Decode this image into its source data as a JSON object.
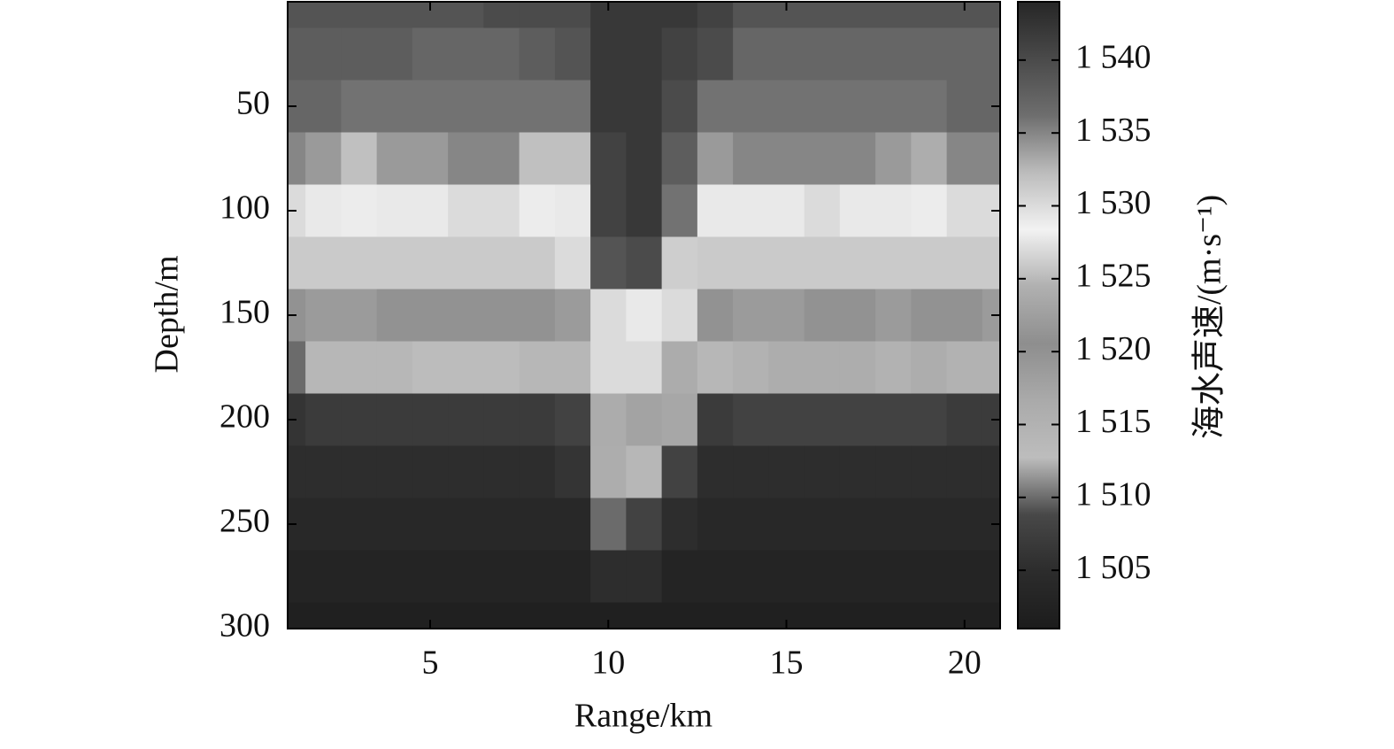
{
  "chart_data": {
    "type": "heatmap",
    "x_label": "Range/km",
    "y_label": "Depth/m",
    "colorbar_label": "海水声速/(m·s⁻¹)",
    "x": [
      1,
      2,
      3,
      4,
      5,
      6,
      7,
      8,
      9,
      10,
      11,
      12,
      13,
      14,
      15,
      16,
      17,
      18,
      19,
      20,
      21
    ],
    "y": [
      0,
      25,
      50,
      75,
      100,
      125,
      150,
      175,
      200,
      225,
      250,
      275,
      300
    ],
    "z": [
      [
        1539,
        1539,
        1539,
        1539,
        1539,
        1539,
        1540,
        1540,
        1540,
        1542,
        1542,
        1542,
        1541,
        1539,
        1539,
        1539,
        1539,
        1539,
        1539,
        1539,
        1539
      ],
      [
        1538,
        1538,
        1538,
        1538,
        1537,
        1537,
        1537,
        1538,
        1539,
        1542,
        1542,
        1541,
        1540,
        1537,
        1537,
        1537,
        1537,
        1537,
        1537,
        1537,
        1537
      ],
      [
        1537,
        1537,
        1536,
        1536,
        1536,
        1536,
        1536,
        1536,
        1536,
        1542,
        1542,
        1540,
        1536,
        1536,
        1536,
        1536,
        1536,
        1536,
        1536,
        1537,
        1537
      ],
      [
        1535,
        1534,
        1532,
        1534,
        1534,
        1535,
        1535,
        1532,
        1532,
        1541,
        1542,
        1538,
        1534,
        1535,
        1535,
        1535,
        1535,
        1534,
        1533,
        1535,
        1535
      ],
      [
        1530,
        1529,
        1528,
        1529,
        1529,
        1530,
        1530,
        1528,
        1529,
        1541,
        1542,
        1536,
        1529,
        1529,
        1529,
        1530,
        1529,
        1529,
        1528,
        1530,
        1530
      ],
      [
        1526,
        1526,
        1526,
        1526,
        1526,
        1526,
        1526,
        1526,
        1527,
        1539,
        1540,
        1531,
        1526,
        1526,
        1526,
        1526,
        1526,
        1526,
        1526,
        1526,
        1526
      ],
      [
        1520,
        1522,
        1522,
        1521,
        1521,
        1520,
        1520,
        1521,
        1522,
        1530,
        1529,
        1527,
        1520,
        1522,
        1522,
        1521,
        1521,
        1522,
        1521,
        1521,
        1522
      ],
      [
        1510,
        1514,
        1514,
        1514,
        1513,
        1513,
        1513,
        1514,
        1514,
        1527,
        1527,
        1524,
        1514,
        1515,
        1516,
        1516,
        1516,
        1515,
        1516,
        1515,
        1515
      ],
      [
        1506,
        1507,
        1507,
        1507,
        1507,
        1507,
        1507,
        1507,
        1508,
        1524,
        1523,
        1512,
        1507,
        1508,
        1508,
        1508,
        1508,
        1508,
        1508,
        1507,
        1507
      ],
      [
        1505,
        1505,
        1505,
        1505,
        1505,
        1505,
        1505,
        1505,
        1506,
        1516,
        1514,
        1508,
        1505,
        1505,
        1505,
        1505,
        1505,
        1505,
        1505,
        1505,
        1505
      ],
      [
        1504,
        1504,
        1504,
        1504,
        1504,
        1504,
        1504,
        1504,
        1504,
        1510,
        1508,
        1505,
        1504,
        1504,
        1504,
        1504,
        1504,
        1504,
        1504,
        1504,
        1504
      ],
      [
        1503,
        1503,
        1503,
        1503,
        1503,
        1503,
        1503,
        1503,
        1503,
        1505,
        1505,
        1503,
        1503,
        1503,
        1503,
        1503,
        1503,
        1503,
        1503,
        1503,
        1503
      ],
      [
        1502,
        1502,
        1502,
        1502,
        1502,
        1502,
        1502,
        1502,
        1502,
        1502,
        1502,
        1502,
        1502,
        1502,
        1502,
        1502,
        1502,
        1502,
        1502,
        1502,
        1502
      ]
    ],
    "xlim": [
      1,
      21
    ],
    "xticks": [
      5,
      10,
      15,
      20
    ],
    "ylim": [
      0,
      300
    ],
    "yticks": [
      50,
      100,
      150,
      200,
      250,
      300
    ],
    "y_reversed": true,
    "zlim": [
      1501,
      1544
    ],
    "zticks": [
      {
        "value": 1505,
        "label": "1 505"
      },
      {
        "value": 1510,
        "label": "1 510"
      },
      {
        "value": 1515,
        "label": "1 515"
      },
      {
        "value": 1520,
        "label": "1 520"
      },
      {
        "value": 1525,
        "label": "1 525"
      },
      {
        "value": 1530,
        "label": "1 530"
      },
      {
        "value": 1535,
        "label": "1 535"
      },
      {
        "value": 1540,
        "label": "1 540"
      }
    ],
    "colormap": [
      "#1c1c1c",
      "#2c2c2c",
      "#484848",
      "#bdbdbd",
      "#aaaaaa",
      "#8e8e8e",
      "#b0b0b0",
      "#f2f2f2",
      "#bcbcbc",
      "#6e6e6e",
      "#4a4a4a",
      "#262626"
    ]
  }
}
